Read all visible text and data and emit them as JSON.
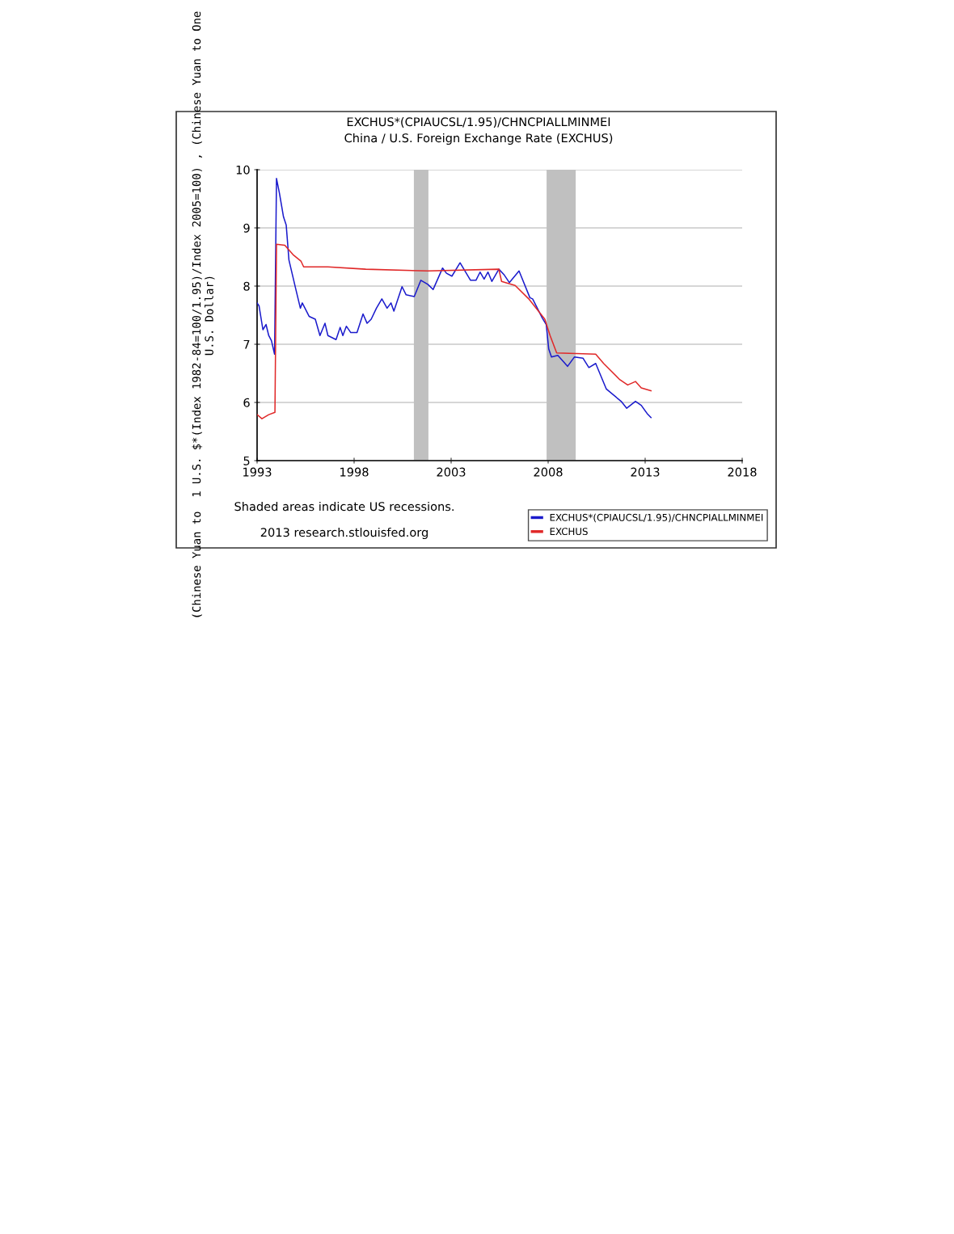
{
  "chart_data": {
    "type": "line",
    "title": "EXCHUS*(CPIAUCSL/1.95)/CHNCPIALLMINMEI",
    "subtitle": "China / U.S. Foreign Exchange Rate (EXCHUS)",
    "ylabel": "(Chinese Yuan to  1 U.S. $*(Index 1982-84=100/1.95)/Index 2005=100) , (Chinese Yuan to One U.S. Dollar)",
    "xlim": [
      1993,
      2018
    ],
    "xticks": [
      1993,
      1998,
      2003,
      2008,
      2013,
      2018
    ],
    "ylim": [
      5,
      10
    ],
    "yticks": [
      5,
      6,
      7,
      8,
      9,
      10
    ],
    "grid": "y",
    "legend": "bottom right",
    "line_style": "solid",
    "marker": "none",
    "bands": [
      {
        "axis": "x",
        "from": 2001.08,
        "to": 2001.83,
        "color": "#c0c0c0"
      },
      {
        "axis": "x",
        "from": 2007.92,
        "to": 2009.42,
        "color": "#c0c0c0"
      }
    ],
    "annotations": [
      "Shaded areas indicate US recessions.",
      "2013 research.stlouisfed.org"
    ],
    "series": [
      {
        "name": "EXCHUS*(CPIAUCSL/1.95)/CHNCPIALLMINMEI",
        "color": "#1a1acc",
        "x": [
          1993.0,
          1993.1,
          1993.3,
          1993.46,
          1993.6,
          1993.74,
          1993.9,
          1994.0,
          1994.15,
          1994.36,
          1994.5,
          1994.64,
          1995.0,
          1995.23,
          1995.33,
          1995.68,
          1996.0,
          1996.24,
          1996.5,
          1996.65,
          1997.07,
          1997.28,
          1997.42,
          1997.6,
          1997.83,
          1998.15,
          1998.46,
          1998.67,
          1998.88,
          1999.15,
          1999.43,
          1999.7,
          1999.9,
          2000.05,
          2000.47,
          2000.68,
          2001.1,
          2001.44,
          2001.8,
          2002.07,
          2002.56,
          2002.76,
          2003.04,
          2003.46,
          2004.0,
          2004.28,
          2004.49,
          2004.7,
          2004.9,
          2005.1,
          2005.46,
          2005.74,
          2006.0,
          2006.5,
          2007.06,
          2007.2,
          2007.7,
          2007.9,
          2008.03,
          2008.17,
          2008.5,
          2009.0,
          2009.35,
          2009.8,
          2010.1,
          2010.45,
          2011.0,
          2011.76,
          2012.05,
          2012.5,
          2012.8,
          2013.1,
          2013.3
        ],
        "values": [
          7.71,
          7.66,
          7.25,
          7.34,
          7.15,
          7.06,
          6.83,
          9.85,
          9.6,
          9.19,
          9.05,
          8.45,
          7.94,
          7.62,
          7.71,
          7.48,
          7.43,
          7.15,
          7.36,
          7.15,
          7.08,
          7.29,
          7.15,
          7.31,
          7.2,
          7.2,
          7.52,
          7.36,
          7.43,
          7.62,
          7.78,
          7.62,
          7.71,
          7.57,
          7.99,
          7.85,
          7.82,
          8.1,
          8.03,
          7.94,
          8.31,
          8.22,
          8.17,
          8.4,
          8.1,
          8.1,
          8.24,
          8.12,
          8.24,
          8.08,
          8.29,
          8.19,
          8.06,
          8.26,
          7.8,
          7.78,
          7.45,
          7.34,
          6.92,
          6.78,
          6.81,
          6.62,
          6.78,
          6.76,
          6.6,
          6.67,
          6.23,
          6.02,
          5.9,
          6.02,
          5.95,
          5.81,
          5.74
        ]
      },
      {
        "name": "EXCHUS",
        "color": "#e02828",
        "x": [
          1993.0,
          1993.25,
          1993.6,
          1993.92,
          1994.0,
          1994.43,
          1994.85,
          1995.26,
          1995.4,
          1996.65,
          1998.6,
          2001.8,
          2005.46,
          2005.6,
          2006.3,
          2007.0,
          2007.83,
          2008.1,
          2008.44,
          2010.45,
          2010.86,
          2011.7,
          2012.1,
          2012.5,
          2012.8,
          2013.3
        ],
        "values": [
          5.79,
          5.72,
          5.79,
          5.83,
          8.72,
          8.7,
          8.54,
          8.43,
          8.33,
          8.33,
          8.29,
          8.26,
          8.29,
          8.08,
          8.01,
          7.78,
          7.43,
          7.15,
          6.85,
          6.83,
          6.67,
          6.39,
          6.3,
          6.36,
          6.25,
          6.2
        ]
      }
    ]
  }
}
